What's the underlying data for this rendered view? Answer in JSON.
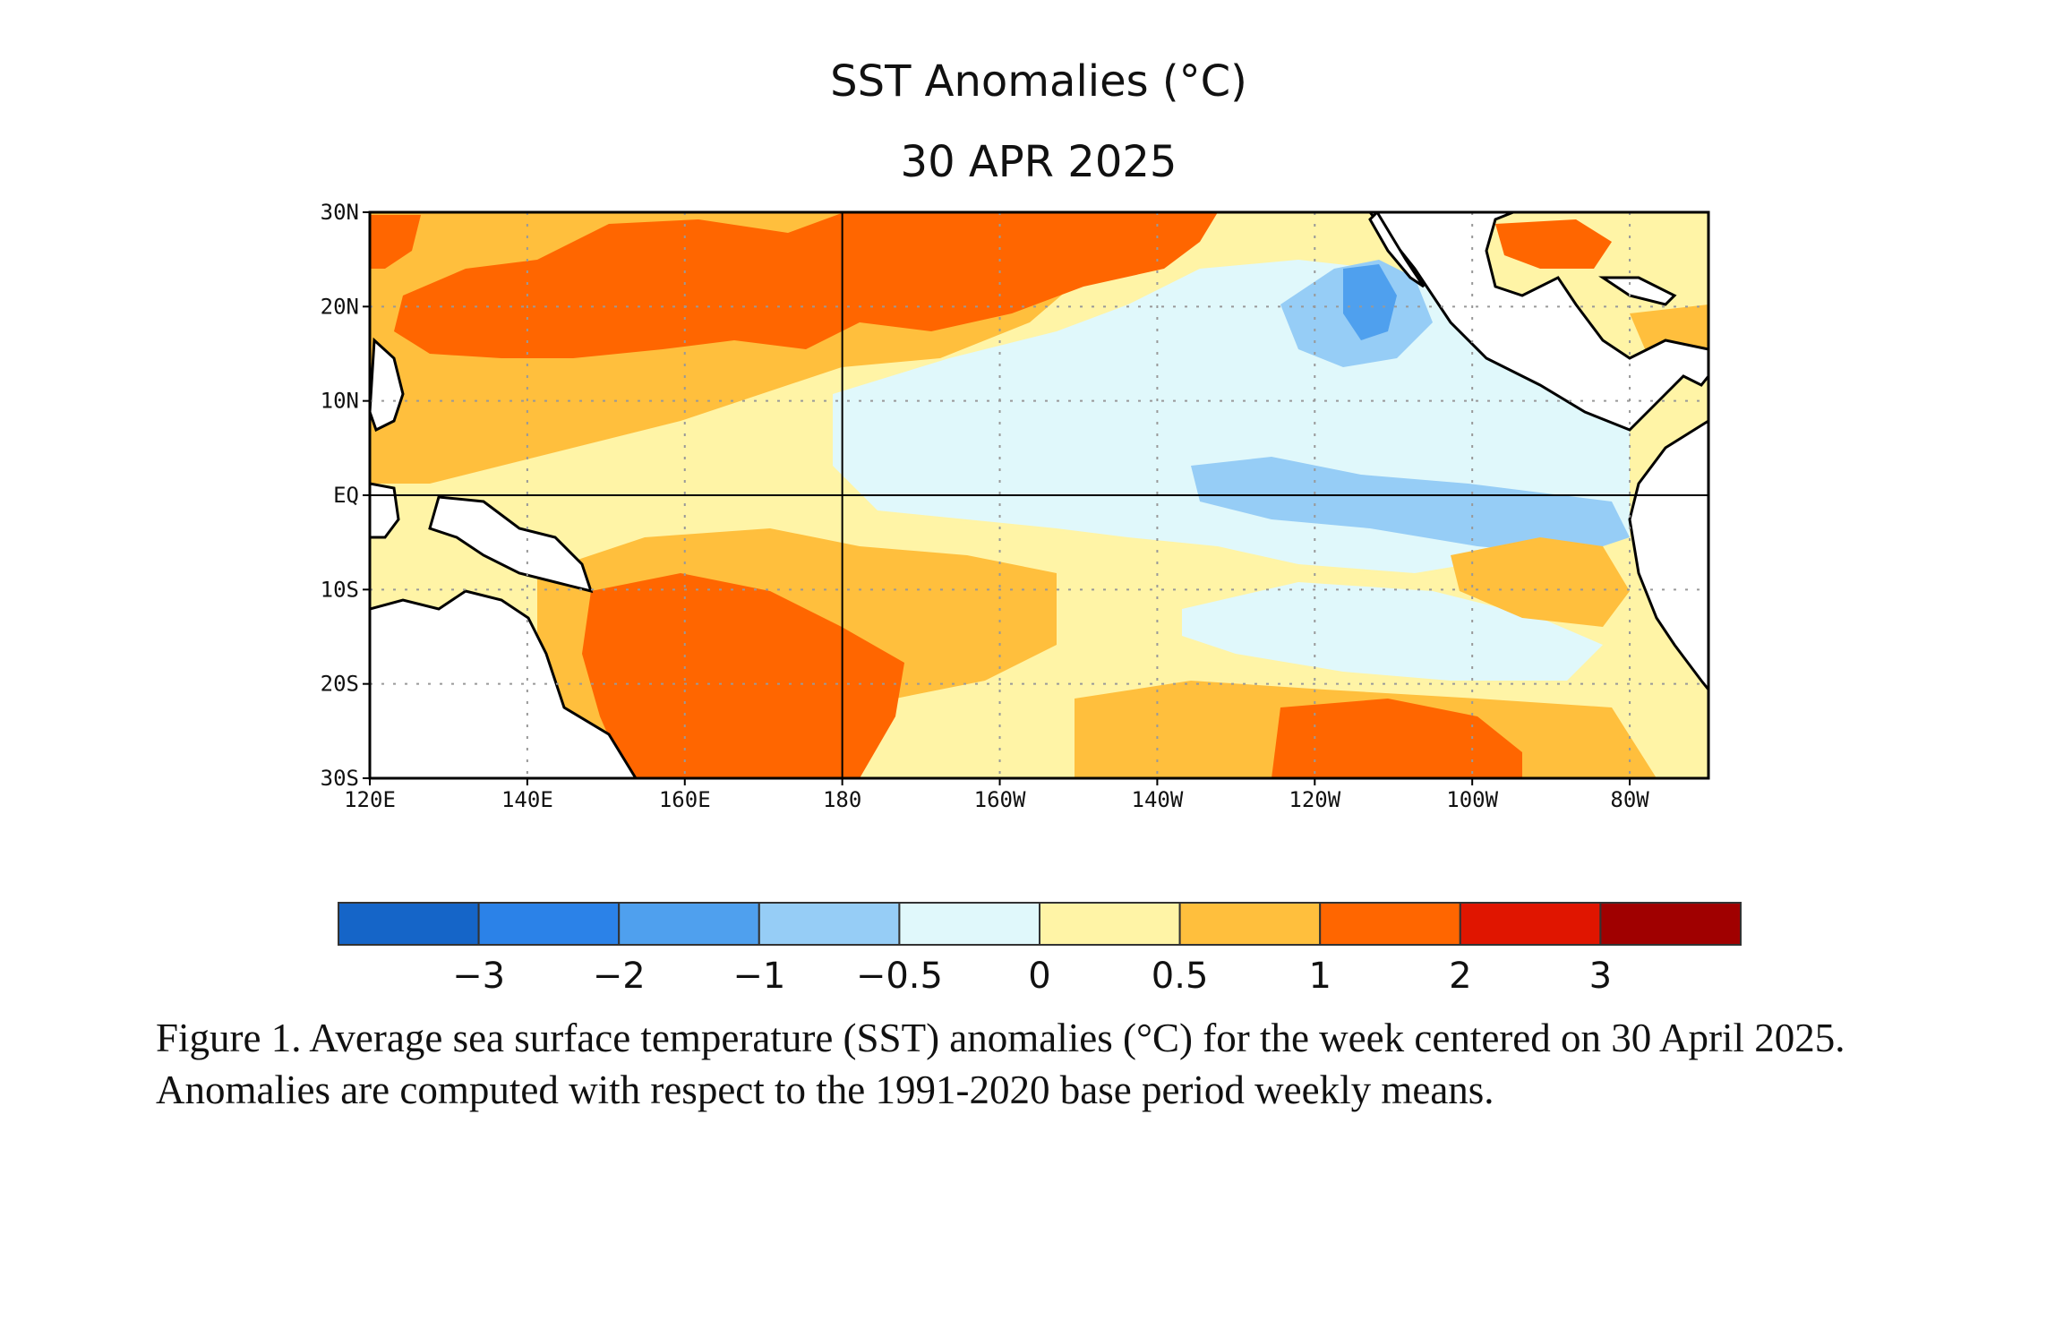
{
  "map": {
    "title": "SST Anomalies (°C)",
    "date": "30 APR 2025",
    "lon_range": [
      120,
      290
    ],
    "lat_range": [
      -30,
      30
    ],
    "lat_ticks": [
      {
        "value": 30,
        "label": "30N"
      },
      {
        "value": 20,
        "label": "20N"
      },
      {
        "value": 10,
        "label": "10N"
      },
      {
        "value": 0,
        "label": "EQ"
      },
      {
        "value": -10,
        "label": "10S"
      },
      {
        "value": -20,
        "label": "20S"
      },
      {
        "value": -30,
        "label": "30S"
      }
    ],
    "lon_ticks": [
      {
        "value": 120,
        "label": "120E"
      },
      {
        "value": 140,
        "label": "140E"
      },
      {
        "value": 160,
        "label": "160E"
      },
      {
        "value": 180,
        "label": "180"
      },
      {
        "value": 200,
        "label": "160W"
      },
      {
        "value": 220,
        "label": "140W"
      },
      {
        "value": 240,
        "label": "120W"
      },
      {
        "value": 260,
        "label": "100W"
      },
      {
        "value": 280,
        "label": "80W"
      }
    ],
    "land_color": "#ffffff"
  },
  "colorbar": {
    "colors": [
      "#1565c8",
      "#2b82e8",
      "#4fa0ee",
      "#96cdf6",
      "#e0f8fb",
      "#fff4a6",
      "#ffbf3d",
      "#ff6600",
      "#e01500",
      "#a00000"
    ],
    "labels": [
      "−3",
      "−2",
      "−1",
      "−0.5",
      "0",
      "0.5",
      "1",
      "2",
      "3"
    ]
  },
  "caption": "Figure 1. Average sea surface temperature (SST) anomalies (°C) for the week centered on 30 April 2025.  Anomalies are computed with respect to the 1991-2020 base period weekly means."
}
